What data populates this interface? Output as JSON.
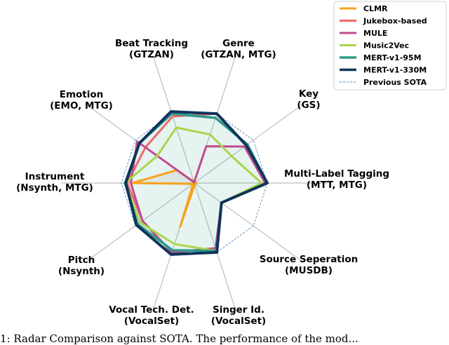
{
  "chart_data": {
    "type": "radar",
    "axes": [
      {
        "lines": [
          "Multi-Label Tagging",
          "(MTT, MTG)"
        ]
      },
      {
        "lines": [
          "Key",
          "(GS)"
        ]
      },
      {
        "lines": [
          "Genre",
          "(GTZAN, MTG)"
        ]
      },
      {
        "lines": [
          "Beat Tracking",
          "(GTZAN)"
        ]
      },
      {
        "lines": [
          "Emotion",
          "(EMO, MTG)"
        ]
      },
      {
        "lines": [
          "Instrument",
          "(Nsynth, MTG)"
        ]
      },
      {
        "lines": [
          "Pitch",
          "(Nsynth)"
        ]
      },
      {
        "lines": [
          "Vocal Tech. Det.",
          "(VocalSet)"
        ]
      },
      {
        "lines": [
          "Singer Id.",
          "(VocalSet)"
        ]
      },
      {
        "lines": [
          "Source Seperation",
          "(MUSDB)"
        ]
      }
    ],
    "series": [
      {
        "name": "CLMR",
        "color": "#f7a21b",
        "width": 3,
        "dashed": false,
        "fill": false,
        "values": [
          0.03,
          0.02,
          0.01,
          0.02,
          0.3,
          0.85,
          0.02,
          0.63,
          0.02,
          0.02
        ]
      },
      {
        "name": "Jukebox-based",
        "color": "#ec6a6a",
        "width": 3,
        "dashed": false,
        "fill": false,
        "values": [
          0.98,
          0.88,
          1.0,
          0.96,
          0.83,
          0.92,
          0.88,
          1.0,
          0.94,
          0.46
        ]
      },
      {
        "name": "MULE",
        "color": "#c04a90",
        "width": 3,
        "dashed": false,
        "fill": false,
        "values": [
          0.97,
          0.85,
          0.53,
          0.01,
          0.97,
          0.87,
          0.88,
          1.0,
          0.94,
          0.46
        ]
      },
      {
        "name": "Music2Vec",
        "color": "#a8d64a",
        "width": 3,
        "dashed": false,
        "fill": false,
        "values": [
          0.92,
          0.63,
          0.7,
          0.8,
          0.63,
          0.95,
          0.92,
          0.88,
          0.98,
          0.46
        ]
      },
      {
        "name": "MERT-v1-95M",
        "color": "#2d9a8a",
        "width": 3.5,
        "dashed": false,
        "fill": true,
        "values": [
          1.0,
          0.9,
          0.94,
          1.0,
          0.93,
          0.95,
          0.96,
          0.97,
          0.98,
          0.46
        ]
      },
      {
        "name": "MERT-v1-330M",
        "color": "#0f3459",
        "width": 4,
        "dashed": false,
        "fill": false,
        "values": [
          1.0,
          0.88,
          1.0,
          1.03,
          0.93,
          0.94,
          0.98,
          1.03,
          1.0,
          0.46
        ]
      },
      {
        "name": "Previous SOTA",
        "color": "#4d88c5",
        "width": 0.9,
        "dashed": true,
        "fill": false,
        "values": [
          1,
          1,
          1,
          1,
          1,
          1,
          1,
          1,
          1,
          1
        ]
      }
    ],
    "legend_position": "top-right"
  },
  "caption": "1: Radar Comparison against SOTA. The performance of the mod..."
}
